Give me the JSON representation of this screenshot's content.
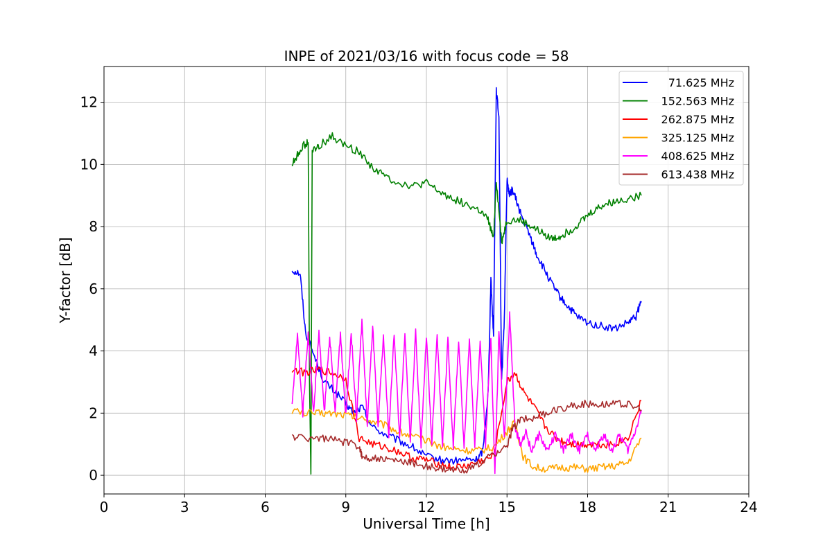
{
  "chart_data": {
    "type": "line",
    "title": "INPE of 2021/03/16 with focus code = 58",
    "xlabel": "Universal Time [h]",
    "ylabel": "Y-factor [dB]",
    "xlim": [
      0,
      24
    ],
    "ylim": [
      -0.6,
      13.15
    ],
    "xticks": [
      0,
      3,
      6,
      9,
      12,
      15,
      18,
      21,
      24
    ],
    "xtick_labels": [
      "0",
      "3",
      "6",
      "9",
      "12",
      "15",
      "18",
      "21",
      "24"
    ],
    "yticks": [
      0,
      2,
      4,
      6,
      8,
      10,
      12
    ],
    "ytick_labels": [
      "0",
      "2",
      "4",
      "6",
      "8",
      "10",
      "12"
    ],
    "grid": true,
    "legend_position": "top-right",
    "series": [
      {
        "name": "71.625 MHz",
        "color": "#0000ff",
        "points": [
          [
            7.0,
            6.6
          ],
          [
            7.3,
            6.5
          ],
          [
            7.5,
            4.6
          ],
          [
            7.8,
            3.9
          ],
          [
            8.2,
            3.0
          ],
          [
            8.6,
            2.7
          ],
          [
            9.0,
            2.3
          ],
          [
            9.3,
            2.0
          ],
          [
            9.6,
            2.2
          ],
          [
            10.0,
            1.55
          ],
          [
            10.5,
            1.3
          ],
          [
            11.0,
            1.1
          ],
          [
            11.5,
            0.9
          ],
          [
            12.0,
            0.6
          ],
          [
            12.5,
            0.5
          ],
          [
            13.0,
            0.45
          ],
          [
            13.5,
            0.5
          ],
          [
            13.9,
            0.5
          ],
          [
            14.1,
            0.8
          ],
          [
            14.3,
            2.7
          ],
          [
            14.4,
            6.3
          ],
          [
            14.5,
            4.5
          ],
          [
            14.6,
            12.4
          ],
          [
            14.7,
            11.5
          ],
          [
            14.8,
            3.0
          ],
          [
            14.9,
            5.0
          ],
          [
            15.0,
            9.5
          ],
          [
            15.1,
            9.0
          ],
          [
            15.2,
            9.2
          ],
          [
            15.4,
            8.7
          ],
          [
            15.6,
            8.2
          ],
          [
            15.9,
            7.6
          ],
          [
            16.1,
            7.1
          ],
          [
            16.4,
            6.6
          ],
          [
            16.7,
            6.1
          ],
          [
            17.0,
            5.7
          ],
          [
            17.3,
            5.4
          ],
          [
            17.6,
            5.1
          ],
          [
            18.0,
            4.9
          ],
          [
            18.5,
            4.8
          ],
          [
            19.0,
            4.7
          ],
          [
            19.5,
            4.9
          ],
          [
            19.8,
            5.1
          ],
          [
            20.0,
            5.6
          ]
        ]
      },
      {
        "name": "152.563 MHz",
        "color": "#008000",
        "points": [
          [
            7.0,
            10.0
          ],
          [
            7.2,
            10.3
          ],
          [
            7.4,
            10.6
          ],
          [
            7.6,
            10.7
          ],
          [
            7.65,
            3.0
          ],
          [
            7.7,
            0.0
          ],
          [
            7.75,
            10.4
          ],
          [
            8.0,
            10.6
          ],
          [
            8.5,
            10.9
          ],
          [
            9.0,
            10.6
          ],
          [
            9.5,
            10.4
          ],
          [
            10.0,
            9.9
          ],
          [
            10.5,
            9.6
          ],
          [
            11.0,
            9.4
          ],
          [
            11.5,
            9.3
          ],
          [
            12.0,
            9.4
          ],
          [
            12.5,
            9.1
          ],
          [
            13.0,
            8.9
          ],
          [
            13.5,
            8.7
          ],
          [
            14.0,
            8.5
          ],
          [
            14.3,
            8.2
          ],
          [
            14.5,
            7.6
          ],
          [
            14.6,
            9.5
          ],
          [
            14.8,
            7.5
          ],
          [
            15.0,
            8.2
          ],
          [
            15.5,
            8.2
          ],
          [
            15.9,
            8.0
          ],
          [
            16.3,
            7.8
          ],
          [
            16.7,
            7.6
          ],
          [
            17.0,
            7.7
          ],
          [
            17.4,
            7.9
          ],
          [
            17.8,
            8.2
          ],
          [
            18.2,
            8.5
          ],
          [
            18.6,
            8.7
          ],
          [
            19.0,
            8.8
          ],
          [
            19.5,
            8.9
          ],
          [
            20.0,
            9.0
          ]
        ]
      },
      {
        "name": "262.875 MHz",
        "color": "#ff0000",
        "points": [
          [
            7.0,
            3.4
          ],
          [
            7.5,
            3.3
          ],
          [
            8.0,
            3.4
          ],
          [
            8.5,
            3.3
          ],
          [
            9.0,
            3.1
          ],
          [
            9.5,
            1.2
          ],
          [
            10.0,
            1.0
          ],
          [
            10.5,
            0.9
          ],
          [
            11.0,
            0.75
          ],
          [
            11.5,
            0.55
          ],
          [
            12.0,
            0.5
          ],
          [
            12.5,
            0.35
          ],
          [
            13.0,
            0.25
          ],
          [
            13.5,
            0.3
          ],
          [
            14.0,
            0.45
          ],
          [
            14.5,
            0.6
          ],
          [
            15.0,
            3.0
          ],
          [
            15.3,
            3.3
          ],
          [
            15.6,
            2.7
          ],
          [
            16.0,
            2.2
          ],
          [
            16.4,
            1.6
          ],
          [
            16.8,
            1.2
          ],
          [
            17.2,
            1.05
          ],
          [
            17.6,
            1.0
          ],
          [
            18.0,
            1.0
          ],
          [
            18.5,
            1.0
          ],
          [
            19.0,
            1.0
          ],
          [
            19.5,
            1.2
          ],
          [
            20.0,
            2.4
          ]
        ]
      },
      {
        "name": "325.125 MHz",
        "color": "#ffa500",
        "points": [
          [
            7.0,
            2.1
          ],
          [
            7.5,
            2.0
          ],
          [
            8.0,
            2.0
          ],
          [
            8.5,
            2.0
          ],
          [
            9.0,
            1.95
          ],
          [
            9.5,
            1.85
          ],
          [
            10.0,
            1.75
          ],
          [
            10.5,
            1.6
          ],
          [
            11.0,
            1.4
          ],
          [
            11.5,
            1.25
          ],
          [
            12.0,
            1.1
          ],
          [
            12.5,
            0.95
          ],
          [
            13.0,
            0.85
          ],
          [
            13.5,
            0.8
          ],
          [
            14.0,
            0.8
          ],
          [
            14.5,
            0.9
          ],
          [
            15.0,
            1.4
          ],
          [
            15.3,
            1.7
          ],
          [
            15.6,
            0.6
          ],
          [
            16.0,
            0.25
          ],
          [
            16.5,
            0.2
          ],
          [
            17.0,
            0.25
          ],
          [
            17.5,
            0.25
          ],
          [
            18.0,
            0.2
          ],
          [
            18.5,
            0.25
          ],
          [
            19.0,
            0.3
          ],
          [
            19.5,
            0.4
          ],
          [
            20.0,
            1.2
          ]
        ]
      },
      {
        "name": "408.625 MHz",
        "color": "#ff00ff",
        "points": [
          [
            7.0,
            2.2
          ],
          [
            7.2,
            4.5
          ],
          [
            7.4,
            2.0
          ],
          [
            7.6,
            4.6
          ],
          [
            7.8,
            2.0
          ],
          [
            8.0,
            4.6
          ],
          [
            8.2,
            2.0
          ],
          [
            8.4,
            4.5
          ],
          [
            8.6,
            2.0
          ],
          [
            8.8,
            4.6
          ],
          [
            9.0,
            1.9
          ],
          [
            9.2,
            4.6
          ],
          [
            9.4,
            1.8
          ],
          [
            9.6,
            5.0
          ],
          [
            9.8,
            1.6
          ],
          [
            10.0,
            4.8
          ],
          [
            10.2,
            1.5
          ],
          [
            10.4,
            4.5
          ],
          [
            10.6,
            1.3
          ],
          [
            10.8,
            4.6
          ],
          [
            11.0,
            1.2
          ],
          [
            11.2,
            4.5
          ],
          [
            11.4,
            1.1
          ],
          [
            11.6,
            4.6
          ],
          [
            11.8,
            1.0
          ],
          [
            12.0,
            4.5
          ],
          [
            12.2,
            1.0
          ],
          [
            12.4,
            4.5
          ],
          [
            12.6,
            1.0
          ],
          [
            12.8,
            4.4
          ],
          [
            13.0,
            0.9
          ],
          [
            13.2,
            4.4
          ],
          [
            13.4,
            0.9
          ],
          [
            13.6,
            4.4
          ],
          [
            13.8,
            0.9
          ],
          [
            14.0,
            4.4
          ],
          [
            14.2,
            1.0
          ],
          [
            14.4,
            4.5
          ],
          [
            14.55,
            0.0
          ],
          [
            14.7,
            4.6
          ],
          [
            14.9,
            1.2
          ],
          [
            15.1,
            5.2
          ],
          [
            15.3,
            1.5
          ],
          [
            15.5,
            1.0
          ],
          [
            15.7,
            1.4
          ],
          [
            15.9,
            0.8
          ],
          [
            16.2,
            1.3
          ],
          [
            16.5,
            0.8
          ],
          [
            16.8,
            1.3
          ],
          [
            17.1,
            0.8
          ],
          [
            17.4,
            1.3
          ],
          [
            17.7,
            0.8
          ],
          [
            18.0,
            1.3
          ],
          [
            18.3,
            0.8
          ],
          [
            18.6,
            1.3
          ],
          [
            18.9,
            0.8
          ],
          [
            19.2,
            1.3
          ],
          [
            19.5,
            0.8
          ],
          [
            19.8,
            1.5
          ],
          [
            20.0,
            2.1
          ]
        ]
      },
      {
        "name": "613.438 MHz",
        "color": "#a52a2a",
        "points": [
          [
            7.0,
            1.25
          ],
          [
            7.5,
            1.2
          ],
          [
            8.0,
            1.2
          ],
          [
            8.5,
            1.15
          ],
          [
            9.0,
            1.05
          ],
          [
            9.5,
            0.95
          ],
          [
            9.6,
            0.6
          ],
          [
            10.0,
            0.55
          ],
          [
            10.5,
            0.5
          ],
          [
            11.0,
            0.45
          ],
          [
            11.5,
            0.4
          ],
          [
            12.0,
            0.3
          ],
          [
            12.5,
            0.2
          ],
          [
            13.0,
            0.15
          ],
          [
            13.5,
            0.2
          ],
          [
            14.0,
            0.35
          ],
          [
            14.5,
            0.7
          ],
          [
            15.0,
            0.9
          ],
          [
            15.2,
            1.5
          ],
          [
            15.5,
            1.8
          ],
          [
            16.0,
            1.85
          ],
          [
            16.5,
            2.0
          ],
          [
            17.0,
            2.15
          ],
          [
            17.5,
            2.25
          ],
          [
            18.0,
            2.3
          ],
          [
            18.5,
            2.3
          ],
          [
            19.0,
            2.3
          ],
          [
            19.5,
            2.3
          ],
          [
            20.0,
            2.1
          ]
        ]
      }
    ]
  }
}
